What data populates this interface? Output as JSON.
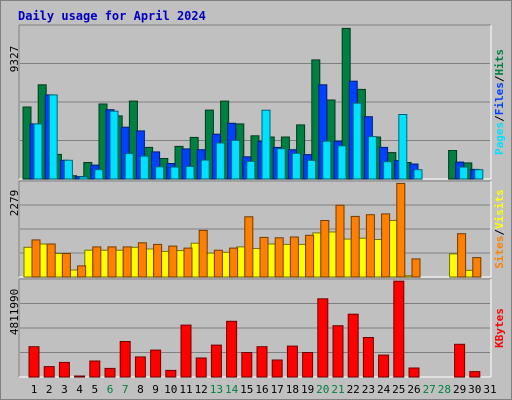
{
  "chart_data": {
    "type": "bar",
    "title": "Daily usage for April 2024",
    "days": [
      "1",
      "2",
      "3",
      "4",
      "5",
      "6",
      "7",
      "8",
      "9",
      "10",
      "11",
      "12",
      "13",
      "14",
      "15",
      "16",
      "17",
      "18",
      "19",
      "20",
      "21",
      "22",
      "23",
      "24",
      "25",
      "26",
      "27",
      "28",
      "29",
      "30",
      "31"
    ],
    "weekend_days": [
      "6",
      "7",
      "13",
      "14",
      "20",
      "21",
      "27",
      "28"
    ],
    "colors": {
      "title": "#0000c0",
      "hits": "#008040",
      "files": "#0040ff",
      "pages": "#00e0ff",
      "visits": "#ffff00",
      "sites": "#ff8000",
      "kbytes": "#ff0000",
      "weekday_label": "#000000",
      "weekend_label": "#008040",
      "background": "#c0c0c0",
      "grid": "#808080"
    },
    "panels": [
      {
        "id": "hits-files-pages",
        "max_label": "9327",
        "ymax": 9327,
        "legend": [
          {
            "text": "Pages",
            "color_key": "pages"
          },
          {
            "text": "Files",
            "color_key": "files"
          },
          {
            "text": "Hits",
            "color_key": "hits"
          }
        ],
        "series": [
          {
            "name": "Hits",
            "color_key": "hits",
            "values": [
              4420,
              5780,
              1510,
              200,
              1010,
              4600,
              3870,
              4780,
              1940,
              1260,
              2000,
              2550,
              4230,
              4780,
              3380,
              2650,
              2580,
              2580,
              3320,
              7310,
              4850,
              9240,
              5500,
              2580,
              1620,
              1010,
              0,
              0,
              1750,
              990,
              0
            ]
          },
          {
            "name": "Files",
            "color_key": "files",
            "values": [
              3380,
              5160,
              1150,
              150,
              850,
              4250,
              3180,
              2950,
              1660,
              950,
              1850,
              1800,
              2750,
              3420,
              1360,
              2320,
              1940,
              1800,
              1500,
              5780,
              2320,
              6000,
              3820,
              1940,
              1130,
              920,
              0,
              0,
              1040,
              590,
              0
            ]
          },
          {
            "name": "Pages",
            "color_key": "pages",
            "values": [
              3380,
              5160,
              1150,
              130,
              570,
              4160,
              1560,
              1400,
              750,
              730,
              770,
              1160,
              2210,
              2370,
              1080,
              4220,
              1860,
              1570,
              1140,
              2320,
              2040,
              4650,
              2600,
              1060,
              3960,
              570,
              0,
              0,
              730,
              570,
              0
            ]
          }
        ]
      },
      {
        "id": "visits-sites",
        "max_label": "2279",
        "ymax": 2279,
        "legend": [
          {
            "text": "Sites",
            "color_key": "sites"
          },
          {
            "text": "Visits",
            "color_key": "visits"
          }
        ],
        "series": [
          {
            "name": "Visits",
            "color_key": "visits",
            "values": [
              720,
              800,
              570,
              170,
              650,
              650,
              650,
              720,
              680,
              620,
              640,
              820,
              580,
              600,
              730,
              690,
              800,
              790,
              790,
              1070,
              1090,
              920,
              940,
              910,
              1370,
              30,
              0,
              0,
              560,
              160,
              0
            ]
          },
          {
            "name": "Sites",
            "color_key": "sites",
            "values": [
              900,
              800,
              570,
              270,
              730,
              730,
              730,
              830,
              790,
              750,
              700,
              1130,
              650,
              700,
              1460,
              960,
              950,
              970,
              1010,
              1370,
              1740,
              1470,
              1510,
              1530,
              2270,
              440,
              0,
              0,
              1050,
              470,
              0
            ]
          }
        ]
      },
      {
        "id": "kbytes",
        "max_label": "4811990",
        "ymax": 4811990,
        "legend": [
          {
            "text": "KBytes",
            "color_key": "kbytes"
          }
        ],
        "series": [
          {
            "name": "KBytes",
            "color_key": "kbytes",
            "values": [
              1520000,
              520000,
              730000,
              40000,
              800000,
              430000,
              1780000,
              1010000,
              1350000,
              330000,
              2600000,
              950000,
              1600000,
              2790000,
              1230000,
              1520000,
              850000,
              1550000,
              1230000,
              3920000,
              2570000,
              3150000,
              1980000,
              1100000,
              4800000,
              450000,
              0,
              0,
              1640000,
              270000,
              0
            ]
          }
        ]
      }
    ]
  }
}
